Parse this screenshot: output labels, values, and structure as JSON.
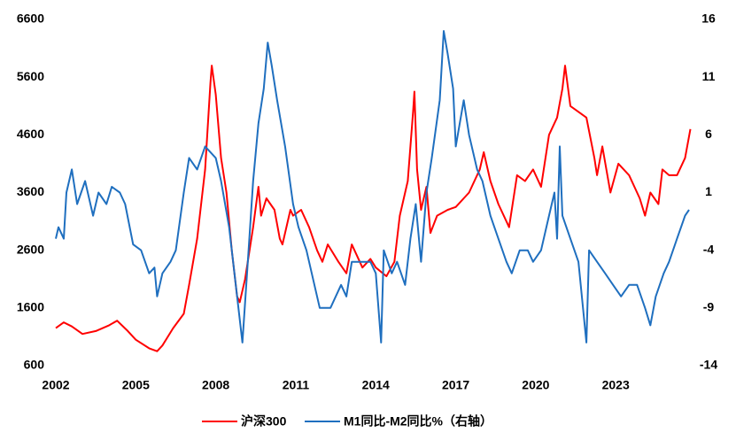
{
  "chart_data": {
    "type": "line",
    "xlim": [
      2002,
      2025.85
    ],
    "xticks": [
      2002,
      2005,
      2008,
      2011,
      2014,
      2017,
      2020,
      2023
    ],
    "ylim": [
      600,
      6600
    ],
    "yticks": [
      600,
      1600,
      2600,
      3600,
      4600,
      5600,
      6600
    ],
    "y2lim": [
      -14,
      16
    ],
    "y2ticks": [
      -14,
      -9,
      -4,
      1,
      6,
      11,
      16
    ],
    "legend": "bottom",
    "series": [
      {
        "name": "沪深300",
        "color": "#ff0000",
        "x": [
          2002.0,
          2002.3,
          2002.6,
          2003.0,
          2003.5,
          2004.0,
          2004.3,
          2004.7,
          2005.0,
          2005.5,
          2005.8,
          2006.0,
          2006.4,
          2006.8,
          2007.0,
          2007.3,
          2007.6,
          2007.8,
          2007.85,
          2008.0,
          2008.2,
          2008.4,
          2008.6,
          2008.8,
          2008.9,
          2009.1,
          2009.4,
          2009.6,
          2009.7,
          2009.9,
          2010.2,
          2010.4,
          2010.5,
          2010.8,
          2010.9,
          2011.2,
          2011.5,
          2011.8,
          2012.0,
          2012.2,
          2012.6,
          2012.9,
          2013.1,
          2013.5,
          2013.8,
          2014.0,
          2014.4,
          2014.7,
          2014.9,
          2015.2,
          2015.4,
          2015.45,
          2015.55,
          2015.7,
          2015.9,
          2016.05,
          2016.3,
          2016.7,
          2017.0,
          2017.5,
          2017.9,
          2018.05,
          2018.3,
          2018.6,
          2018.9,
          2019.0,
          2019.3,
          2019.6,
          2019.9,
          2020.2,
          2020.5,
          2020.8,
          2021.0,
          2021.1,
          2021.3,
          2021.6,
          2021.9,
          2022.2,
          2022.3,
          2022.5,
          2022.8,
          2023.1,
          2023.5,
          2023.9,
          2024.1,
          2024.3,
          2024.6,
          2024.75,
          2025.0,
          2025.3,
          2025.6,
          2025.8
        ],
        "values": [
          1250,
          1350,
          1280,
          1150,
          1200,
          1300,
          1380,
          1200,
          1050,
          900,
          850,
          950,
          1250,
          1500,
          2000,
          2800,
          4000,
          5500,
          5800,
          5300,
          4200,
          3600,
          2600,
          1800,
          1700,
          2100,
          3000,
          3700,
          3200,
          3500,
          3300,
          2800,
          2700,
          3300,
          3200,
          3300,
          3000,
          2600,
          2400,
          2700,
          2400,
          2200,
          2700,
          2300,
          2450,
          2300,
          2150,
          2400,
          3200,
          3800,
          5000,
          5350,
          4000,
          3300,
          3700,
          2900,
          3200,
          3300,
          3350,
          3600,
          4000,
          4300,
          3800,
          3400,
          3100,
          3000,
          3900,
          3800,
          4000,
          3700,
          4600,
          4900,
          5400,
          5800,
          5100,
          5000,
          4900,
          4200,
          3900,
          4400,
          3600,
          4100,
          3900,
          3500,
          3200,
          3600,
          3400,
          4000,
          3900,
          3900,
          4200,
          4700
        ]
      },
      {
        "name": "M1同比-M2同比%（右轴）",
        "color": "#1f6fbf",
        "axis": "y2",
        "x": [
          2002.0,
          2002.1,
          2002.3,
          2002.4,
          2002.6,
          2002.8,
          2003.1,
          2003.4,
          2003.6,
          2003.9,
          2004.1,
          2004.4,
          2004.6,
          2004.9,
          2005.2,
          2005.5,
          2005.7,
          2005.8,
          2006.0,
          2006.3,
          2006.5,
          2006.8,
          2007.0,
          2007.3,
          2007.6,
          2008.0,
          2008.2,
          2008.5,
          2008.8,
          2009.0,
          2009.2,
          2009.4,
          2009.6,
          2009.8,
          2009.95,
          2010.1,
          2010.3,
          2010.6,
          2010.9,
          2011.1,
          2011.4,
          2011.7,
          2011.9,
          2012.3,
          2012.7,
          2012.9,
          2013.1,
          2013.4,
          2013.8,
          2014.0,
          2014.2,
          2014.3,
          2014.6,
          2014.8,
          2015.1,
          2015.3,
          2015.5,
          2015.7,
          2015.9,
          2016.1,
          2016.4,
          2016.55,
          2016.7,
          2016.9,
          2017.0,
          2017.3,
          2017.5,
          2017.8,
          2018.0,
          2018.3,
          2018.6,
          2018.9,
          2019.1,
          2019.4,
          2019.7,
          2019.9,
          2020.2,
          2020.5,
          2020.7,
          2020.8,
          2020.9,
          2021.0,
          2021.3,
          2021.6,
          2021.9,
          2022.0,
          2022.3,
          2022.6,
          2022.9,
          2023.2,
          2023.5,
          2023.8,
          2024.1,
          2024.3,
          2024.5,
          2024.8,
          2025.0,
          2025.3,
          2025.6,
          2025.75
        ],
        "values": [
          -3,
          -2,
          -3,
          1,
          3,
          0,
          2,
          -1,
          1,
          0,
          1.5,
          1,
          0,
          -3.5,
          -4,
          -6,
          -5.5,
          -8,
          -6,
          -5,
          -4,
          1,
          4,
          3,
          5,
          4,
          2,
          -2,
          -8,
          -12,
          -5,
          2,
          7,
          10,
          14,
          12,
          9,
          5,
          0,
          -2,
          -4,
          -7,
          -9,
          -9,
          -7,
          -8,
          -5,
          -5,
          -5,
          -6,
          -12,
          -4,
          -6,
          -5,
          -7,
          -3,
          0,
          -5,
          1,
          4,
          9,
          15,
          13,
          10,
          5,
          9,
          6,
          3,
          2,
          -1,
          -3,
          -5,
          -6,
          -4,
          -4,
          -5,
          -4,
          -1,
          1,
          -3,
          5,
          -1,
          -3,
          -5,
          -12,
          -4,
          -5,
          -6,
          -7,
          -8,
          -7,
          -7,
          -9,
          -10.5,
          -8,
          -6,
          -5,
          -3,
          -1,
          -0.5
        ]
      }
    ]
  }
}
